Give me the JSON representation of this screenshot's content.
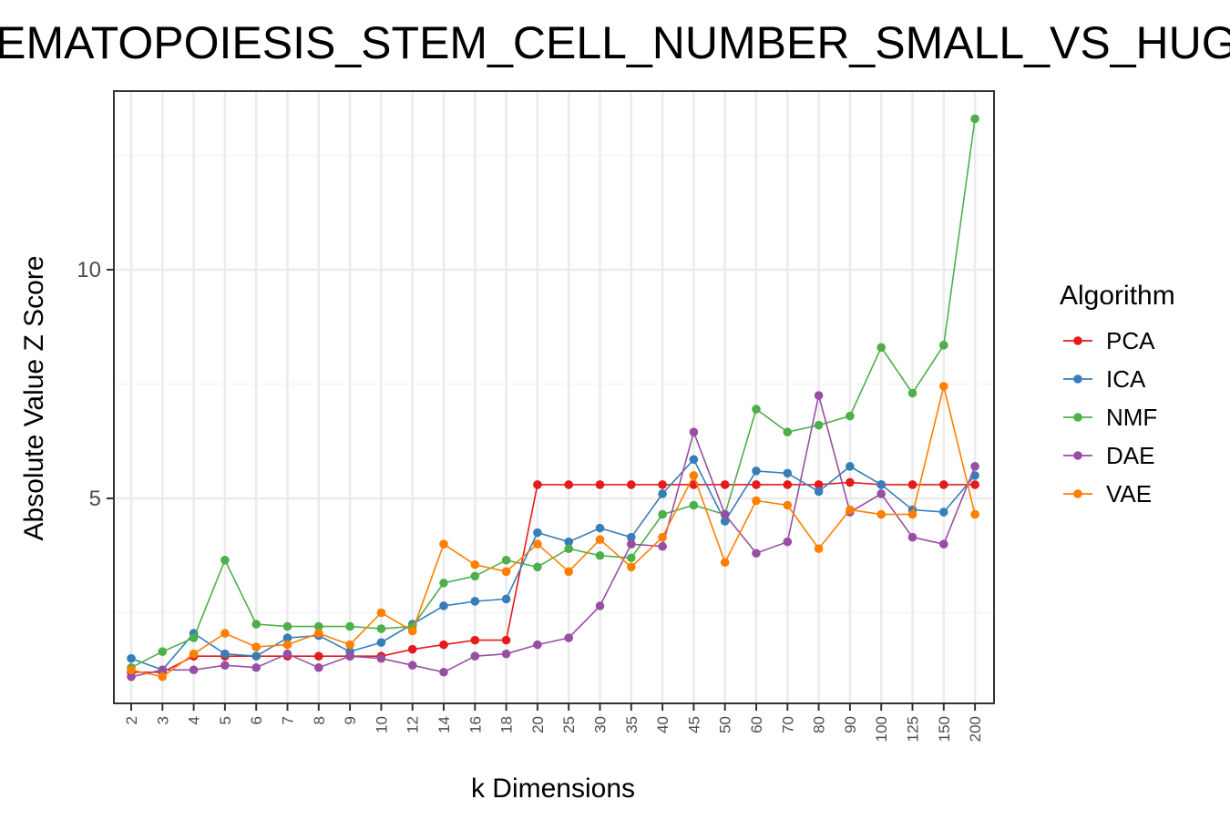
{
  "chart_data": {
    "type": "line",
    "title": "HEMATOPOIESIS_STEM_CELL_NUMBER_SMALL_VS_HUGE",
    "xlabel": "k Dimensions",
    "ylabel": "Absolute Value Z Score",
    "categories": [
      "2",
      "3",
      "4",
      "5",
      "6",
      "7",
      "8",
      "9",
      "10",
      "12",
      "14",
      "16",
      "18",
      "20",
      "25",
      "30",
      "35",
      "40",
      "45",
      "50",
      "60",
      "70",
      "80",
      "90",
      "100",
      "125",
      "150",
      "200"
    ],
    "ylim": [
      0.5,
      14.0
    ],
    "yticks": [
      "5",
      "10"
    ],
    "grid": true,
    "legend": {
      "title": "Algorithm",
      "position": "right"
    },
    "series": [
      {
        "name": "PCA",
        "color": "#e41a1c",
        "values": [
          1.2,
          1.2,
          1.55,
          1.55,
          1.55,
          1.55,
          1.55,
          1.55,
          1.55,
          1.7,
          1.8,
          1.9,
          1.9,
          5.3,
          5.3,
          5.3,
          5.3,
          5.3,
          5.3,
          5.3,
          5.3,
          5.3,
          5.3,
          5.35,
          5.3,
          5.3,
          5.3,
          5.3
        ]
      },
      {
        "name": "ICA",
        "color": "#377eb8",
        "values": [
          1.5,
          1.25,
          2.05,
          1.6,
          1.55,
          1.95,
          2.0,
          1.65,
          1.85,
          2.25,
          2.65,
          2.75,
          2.8,
          4.25,
          4.05,
          4.35,
          4.15,
          5.1,
          5.85,
          4.5,
          5.6,
          5.55,
          5.15,
          5.7,
          5.3,
          4.75,
          4.7,
          5.5
        ]
      },
      {
        "name": "NMF",
        "color": "#4daf4a",
        "values": [
          1.3,
          1.65,
          1.95,
          3.65,
          2.25,
          2.2,
          2.2,
          2.2,
          2.15,
          2.2,
          3.15,
          3.3,
          3.65,
          3.5,
          3.9,
          3.75,
          3.7,
          4.65,
          4.85,
          4.65,
          6.95,
          6.45,
          6.6,
          6.8,
          8.3,
          7.3,
          8.35,
          13.3
        ]
      },
      {
        "name": "DAE",
        "color": "#984ea3",
        "values": [
          1.1,
          1.25,
          1.25,
          1.35,
          1.3,
          1.6,
          1.3,
          1.55,
          1.5,
          1.35,
          1.2,
          1.55,
          1.6,
          1.8,
          1.95,
          2.65,
          4.0,
          3.95,
          6.45,
          4.65,
          3.8,
          4.05,
          7.25,
          4.7,
          5.1,
          4.15,
          4.0,
          5.7
        ]
      },
      {
        "name": "VAE",
        "color": "#ff7f00",
        "values": [
          1.25,
          1.1,
          1.6,
          2.05,
          1.75,
          1.8,
          2.05,
          1.8,
          2.5,
          2.1,
          4.0,
          3.55,
          3.4,
          4.0,
          3.4,
          4.1,
          3.5,
          4.15,
          5.5,
          3.6,
          4.95,
          4.85,
          3.9,
          4.75,
          4.65,
          4.65,
          7.45,
          4.65
        ]
      }
    ]
  }
}
